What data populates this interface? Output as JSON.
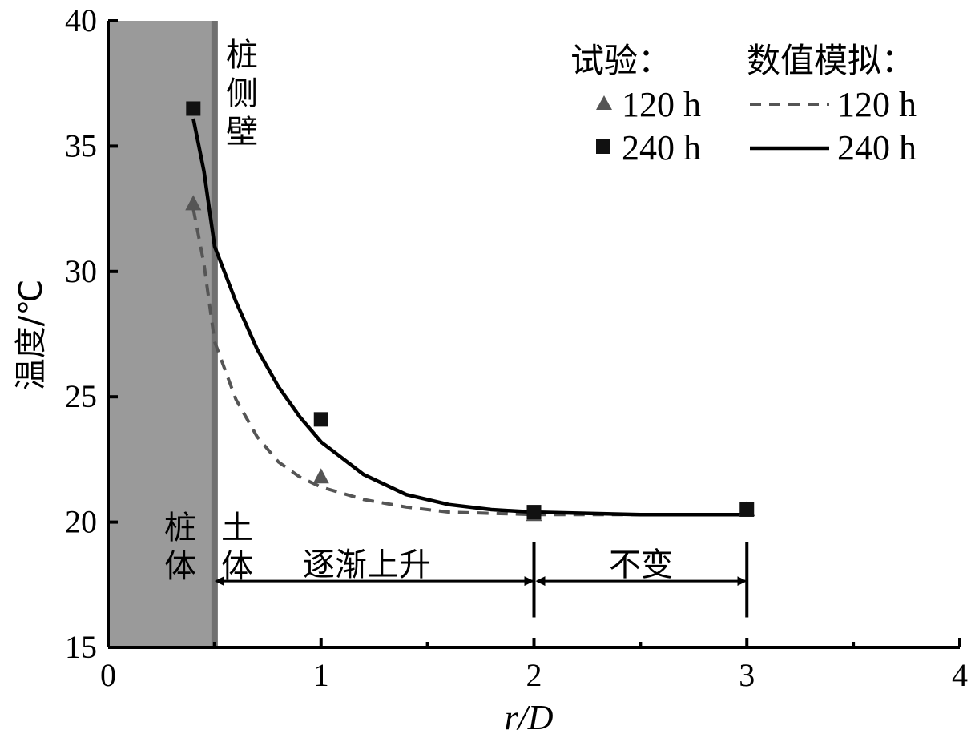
{
  "chart_data": {
    "type": "line",
    "xlabel": "r/D",
    "ylabel": "温度/℃",
    "xlim": [
      0,
      4
    ],
    "ylim": [
      15,
      40
    ],
    "x_ticks": [
      "0",
      "1",
      "2",
      "3",
      "4"
    ],
    "y_ticks": [
      "15",
      "20",
      "25",
      "30",
      "35",
      "40"
    ],
    "x_tick_values": [
      0,
      1,
      2,
      3,
      4
    ],
    "y_tick_values": [
      15,
      20,
      25,
      30,
      35,
      40
    ],
    "pile_boundary_x": 0.5,
    "legend": {
      "test_title": "试验：",
      "sim_title": "数值模拟：",
      "entries": [
        {
          "group": "test",
          "marker": "triangle",
          "label": "120 h"
        },
        {
          "group": "test",
          "marker": "square",
          "label": "240 h"
        },
        {
          "group": "sim",
          "style": "dashed",
          "label": "120 h"
        },
        {
          "group": "sim",
          "style": "solid",
          "label": "240 h"
        }
      ]
    },
    "test_series": [
      {
        "name": "120 h",
        "marker": "triangle",
        "color": "#555555",
        "x": [
          0.4,
          1.0,
          2.0,
          3.0
        ],
        "y": [
          32.7,
          21.8,
          20.3,
          20.5
        ]
      },
      {
        "name": "240 h",
        "marker": "square",
        "color": "#111111",
        "x": [
          0.4,
          1.0,
          2.0,
          3.0
        ],
        "y": [
          36.5,
          24.1,
          20.4,
          20.5
        ]
      }
    ],
    "sim_series": [
      {
        "name": "120 h",
        "style": "dashed",
        "color": "#555555",
        "x": [
          0.4,
          0.45,
          0.5,
          0.6,
          0.7,
          0.8,
          0.9,
          1.0,
          1.2,
          1.4,
          1.6,
          1.8,
          2.0,
          2.5,
          3.0,
          3.03
        ],
        "y": [
          32.5,
          30.3,
          27.2,
          24.9,
          23.4,
          22.4,
          21.8,
          21.4,
          20.9,
          20.6,
          20.4,
          20.35,
          20.3,
          20.3,
          20.3,
          20.3
        ]
      },
      {
        "name": "240 h",
        "style": "solid",
        "color": "#000000",
        "x": [
          0.4,
          0.45,
          0.5,
          0.6,
          0.7,
          0.8,
          0.9,
          1.0,
          1.2,
          1.4,
          1.6,
          1.8,
          2.0,
          2.5,
          3.0,
          3.03
        ],
        "y": [
          36.1,
          34.0,
          31.0,
          28.8,
          26.9,
          25.4,
          24.2,
          23.2,
          21.9,
          21.1,
          20.7,
          20.5,
          20.4,
          20.3,
          20.3,
          20.3
        ]
      }
    ],
    "annotations": {
      "pile_side_wall": [
        "桩",
        "侧",
        "壁"
      ],
      "pile_body": [
        "桩",
        "体"
      ],
      "soil_body": [
        "土",
        "体"
      ],
      "gradual_rise": "逐渐上升",
      "unchanged": "不变"
    },
    "colors": {
      "pile_fill": "#9a9a9a",
      "pile_wall": "#707070",
      "axis": "#000000"
    }
  }
}
